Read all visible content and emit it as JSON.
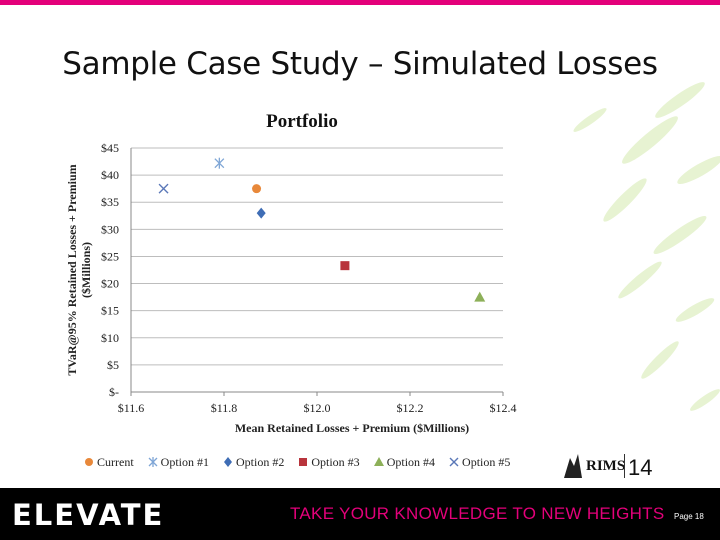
{
  "slide": {
    "title": "Sample Case Study – Simulated Losses",
    "brand": "ELEVATE",
    "tagline": "TAKE YOUR KNOWLEDGE TO NEW HEIGHTS",
    "page": "Page 18",
    "logo_text": "RIMS",
    "logo_year": "14"
  },
  "colors": {
    "accent": "#e3007a",
    "current": "#e8883a",
    "option1": "#7fa6d6",
    "option2": "#3f6db5",
    "option3": "#b8343c",
    "option4": "#8db059",
    "option5": "#5b78b8"
  },
  "chart_data": {
    "type": "scatter",
    "title": "Portfolio",
    "xlabel": "Mean Retained Losses + Premium ($Millions)",
    "ylabel_lines": [
      "TVaR@95% Retained Losses + Premium",
      "($Millions)"
    ],
    "xlim": [
      11.6,
      12.4
    ],
    "ylim": [
      0,
      45
    ],
    "x_ticks": [
      11.6,
      11.8,
      12.0,
      12.2,
      12.4
    ],
    "x_tick_labels": [
      "$11.6",
      "$11.8",
      "$12.0",
      "$12.2",
      "$12.4"
    ],
    "y_ticks": [
      0,
      5,
      10,
      15,
      20,
      25,
      30,
      35,
      40,
      45
    ],
    "y_tick_labels": [
      "$-",
      "$5",
      "$10",
      "$15",
      "$20",
      "$25",
      "$30",
      "$35",
      "$40",
      "$45"
    ],
    "grid": "horizontal",
    "legend_position": "bottom",
    "series": [
      {
        "name": "Current",
        "marker": "circle",
        "color": "#e8883a",
        "x": 11.87,
        "y": 37.5
      },
      {
        "name": "Option #1",
        "marker": "star",
        "color": "#7fa6d6",
        "x": 11.79,
        "y": 42.2
      },
      {
        "name": "Option #2",
        "marker": "diamond",
        "color": "#3f6db5",
        "x": 11.88,
        "y": 33.0
      },
      {
        "name": "Option #3",
        "marker": "square",
        "color": "#b8343c",
        "x": 12.06,
        "y": 23.3
      },
      {
        "name": "Option #4",
        "marker": "triangle",
        "color": "#8db059",
        "x": 12.35,
        "y": 17.5
      },
      {
        "name": "Option #5",
        "marker": "x",
        "color": "#5b78b8",
        "x": 11.67,
        "y": 37.5
      }
    ]
  }
}
